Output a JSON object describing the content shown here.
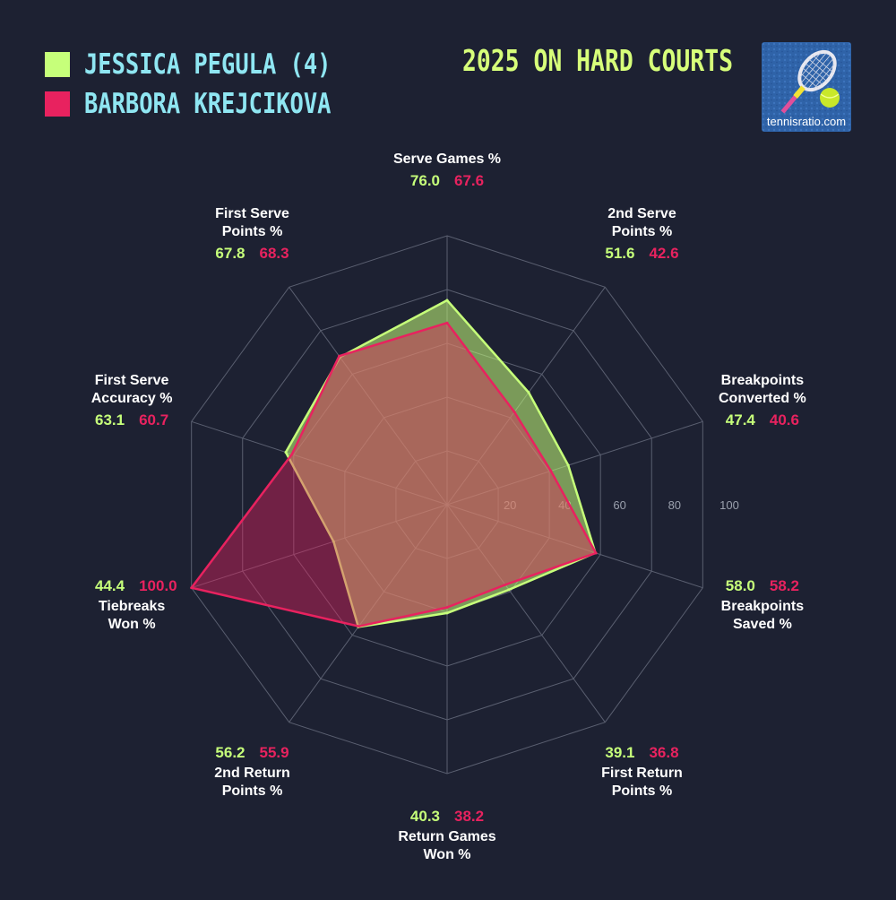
{
  "legend": {
    "player1": "JESSICA PEGULA (4)",
    "player2": "BARBORA KREJCIKOVA"
  },
  "title": "2025 ON HARD COURTS",
  "logo": {
    "text": "tennisratio.com"
  },
  "colors": {
    "background": "#1d2132",
    "player1": "#c6ff7a",
    "player2": "#e8225f",
    "name_text": "#8fe6f2",
    "title_text": "#d7ff7a",
    "grid": "#5a5f70"
  },
  "chart_data": {
    "type": "radar",
    "rmax": 100,
    "ticks": [
      "20",
      "40",
      "60",
      "80",
      "100"
    ],
    "tick_values": [
      20,
      40,
      60,
      80,
      100
    ],
    "grid_levels": [
      20,
      40,
      60,
      80,
      100
    ],
    "axes": [
      {
        "label": [
          "Serve Games %"
        ],
        "p1": "76.0",
        "p2": "67.6"
      },
      {
        "label": [
          "2nd Serve",
          "Points %"
        ],
        "p1": "51.6",
        "p2": "42.6"
      },
      {
        "label": [
          "Breakpoints",
          "Converted %"
        ],
        "p1": "47.4",
        "p2": "40.6"
      },
      {
        "label": [
          "Breakpoints",
          "Saved %"
        ],
        "p1": "58.0",
        "p2": "58.2"
      },
      {
        "label": [
          "First Return",
          "Points %"
        ],
        "p1": "39.1",
        "p2": "36.8"
      },
      {
        "label": [
          "Return Games",
          "Won %"
        ],
        "p1": "40.3",
        "p2": "38.2"
      },
      {
        "label": [
          "2nd Return",
          "Points %"
        ],
        "p1": "56.2",
        "p2": "55.9"
      },
      {
        "label": [
          "Tiebreaks",
          "Won %"
        ],
        "p1": "44.4",
        "p2": "100.0"
      },
      {
        "label": [
          "First Serve",
          "Accuracy %"
        ],
        "p1": "63.1",
        "p2": "60.7"
      },
      {
        "label": [
          "First Serve",
          "Points %"
        ],
        "p1": "67.8",
        "p2": "68.3"
      }
    ],
    "series": [
      {
        "name": "JESSICA PEGULA (4)",
        "values": [
          76.0,
          51.6,
          47.4,
          58.0,
          39.1,
          40.3,
          56.2,
          44.4,
          63.1,
          67.8
        ]
      },
      {
        "name": "BARBORA KREJCIKOVA",
        "values": [
          67.6,
          42.6,
          40.6,
          58.2,
          36.8,
          38.2,
          55.9,
          100.0,
          60.7,
          68.3
        ]
      }
    ]
  }
}
